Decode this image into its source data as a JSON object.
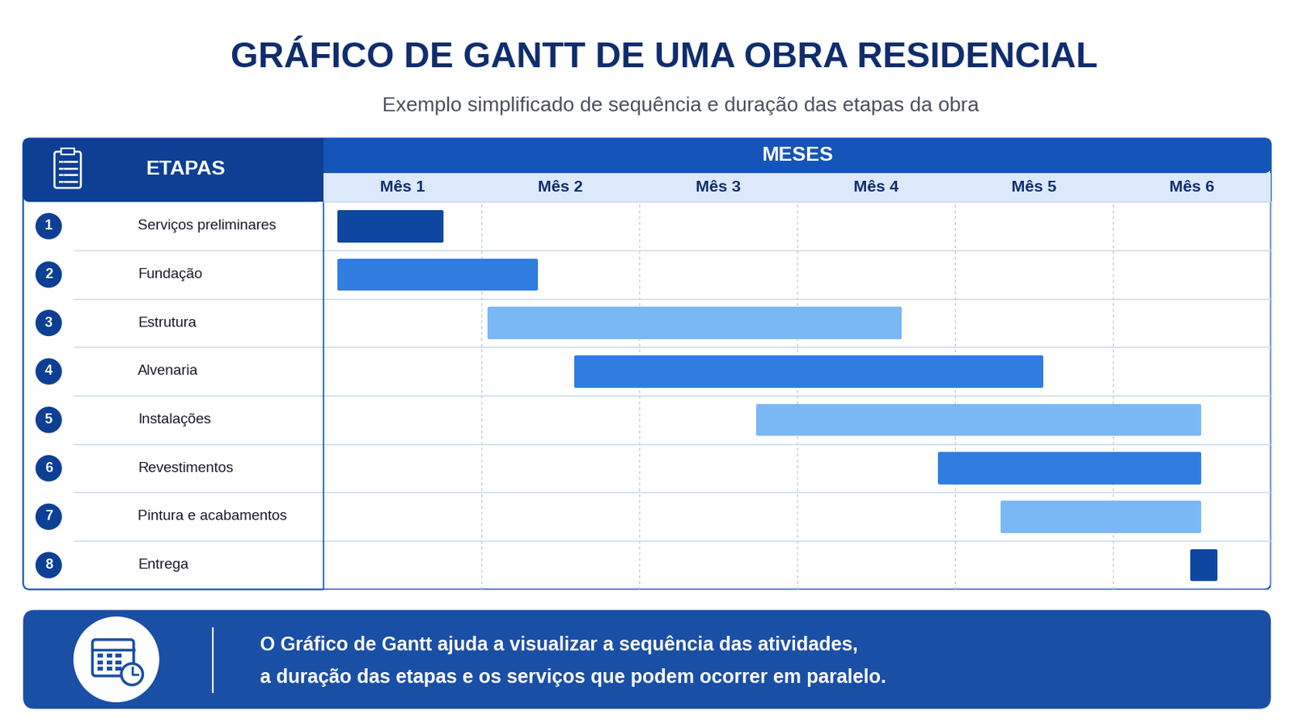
{
  "header": {
    "title": "GRÁFICO DE GANTT DE UMA OBRA RESIDENCIAL",
    "subtitle": "Exemplo simplificado de sequência e duração das etapas da obra"
  },
  "chart_data": {
    "type": "gantt",
    "orientation": "horizontal",
    "row_header": "ETAPAS",
    "xlabel": "MESES",
    "categories": [
      "Serviços preliminares",
      "Fundação",
      "Estrutura",
      "Alvenaria",
      "Instalações",
      "Revestimentos",
      "Pintura e acabamentos",
      "Entrega"
    ],
    "numbers": [
      1,
      2,
      3,
      4,
      5,
      6,
      7,
      8
    ],
    "start": [
      0.1,
      0.1,
      1.05,
      1.6,
      2.75,
      3.9,
      4.3,
      5.5
    ],
    "end": [
      0.75,
      1.35,
      3.65,
      4.55,
      5.55,
      5.55,
      5.55,
      5.65
    ],
    "colors": [
      "#0d47a1",
      "#2f7de1",
      "#7ab8f5",
      "#2f7de1",
      "#7ab8f5",
      "#2f7de1",
      "#7ab8f5",
      "#0d47a1"
    ],
    "xlim": [
      0,
      6
    ],
    "xticks": [
      {
        "value": 0.5,
        "label": "Mês 1"
      },
      {
        "value": 1.5,
        "label": "Mês 2"
      },
      {
        "value": 2.5,
        "label": "Mês 3"
      },
      {
        "value": 3.5,
        "label": "Mês 4"
      },
      {
        "value": 4.5,
        "label": "Mês 5"
      },
      {
        "value": 5.5,
        "label": "Mês 6"
      }
    ],
    "grid": true
  },
  "footer": {
    "lines": [
      "O Gráfico de Gantt ajuda a visualizar a sequência das atividades,",
      "a duração das etapas e os serviços que podem ocorrer em paralelo."
    ]
  }
}
